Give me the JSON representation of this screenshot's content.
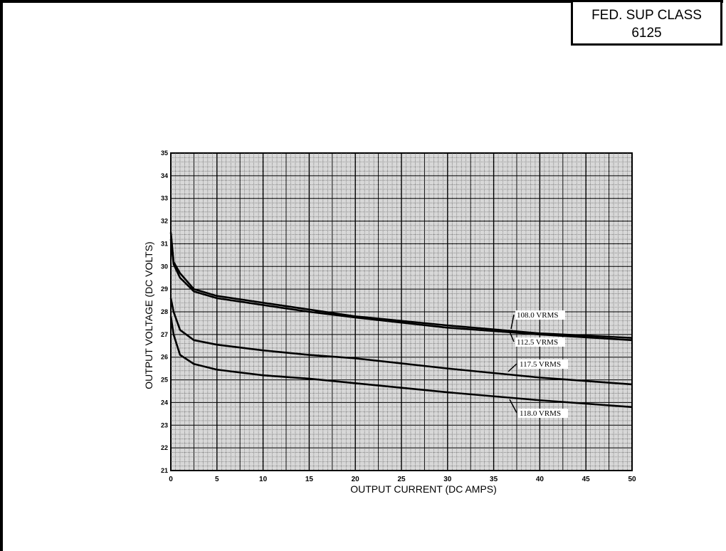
{
  "header": {
    "class_line1": "FED. SUP CLASS",
    "class_line2": "6125"
  },
  "chart_data": {
    "type": "line",
    "title": "",
    "xlabel": "OUTPUT CURRENT (DC AMPS)",
    "ylabel": "OUTPUT VOLTAGE (DC VOLTS)",
    "xlim": [
      0,
      50
    ],
    "ylim": [
      21,
      35
    ],
    "xticks": [
      0,
      5,
      10,
      15,
      20,
      25,
      30,
      35,
      40,
      45,
      50
    ],
    "yticks": [
      21,
      22,
      23,
      24,
      25,
      26,
      27,
      28,
      29,
      30,
      31,
      32,
      33,
      34,
      35
    ],
    "grid": true,
    "x": [
      0,
      0.3,
      1,
      2.5,
      5,
      10,
      15,
      20,
      30,
      40,
      50
    ],
    "series": [
      {
        "name": "108.0 VRMS",
        "values": [
          31.5,
          30.2,
          29.7,
          29.0,
          28.7,
          28.4,
          28.1,
          27.8,
          27.4,
          27.05,
          26.85
        ]
      },
      {
        "name": "112.5 VRMS",
        "values": [
          31.2,
          30.1,
          29.5,
          28.9,
          28.6,
          28.3,
          28.0,
          27.75,
          27.3,
          27.0,
          26.75
        ]
      },
      {
        "name": "117.5 VRMS",
        "values": [
          28.6,
          28.0,
          27.2,
          26.75,
          26.55,
          26.3,
          26.1,
          25.95,
          25.5,
          25.1,
          24.8
        ]
      },
      {
        "name": "118.0 VRMS",
        "values": [
          27.8,
          27.0,
          26.1,
          25.7,
          25.45,
          25.2,
          25.05,
          24.85,
          24.45,
          24.1,
          23.8
        ]
      }
    ]
  }
}
